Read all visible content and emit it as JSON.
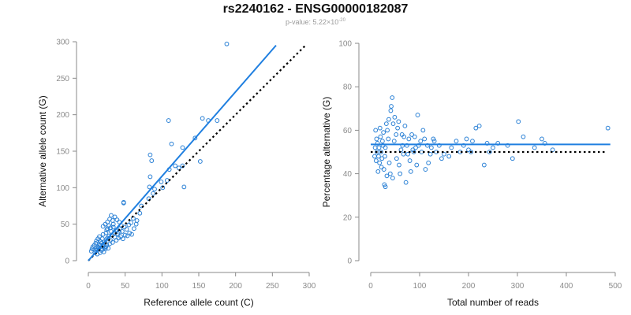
{
  "title": "rs2240162 - ENSG00000182087",
  "subtitle": {
    "prefix": "p-value: 5.22×10",
    "exponent": "-20"
  },
  "colors": {
    "points": "#2a80d5",
    "fit": "#1f7fe0",
    "reference": "#000000",
    "axis": "#8a8a8a"
  },
  "chart_data": [
    {
      "type": "scatter",
      "xlabel": "Reference allele count (C)",
      "ylabel": "Alternative allele count (G)",
      "xlim": [
        0,
        300
      ],
      "ylim": [
        0,
        300
      ],
      "xticks": [
        "0",
        "50",
        "100",
        "150",
        "200",
        "250",
        "300"
      ],
      "yticks": [
        "0",
        "50",
        "100",
        "150",
        "200",
        "250",
        "300"
      ],
      "fit_line": {
        "from": [
          0,
          0
        ],
        "to": [
          255,
          295
        ],
        "style": "solid"
      },
      "reference_line": {
        "from": [
          0,
          0
        ],
        "to": [
          295,
          295
        ],
        "style": "dotted"
      },
      "points": [
        [
          188,
          297
        ],
        [
          109,
          192
        ],
        [
          155,
          195
        ],
        [
          163,
          192
        ],
        [
          175,
          192
        ],
        [
          84,
          145
        ],
        [
          86,
          137
        ],
        [
          145,
          168
        ],
        [
          128,
          155
        ],
        [
          113,
          160
        ],
        [
          118,
          130
        ],
        [
          110,
          125
        ],
        [
          128,
          130
        ],
        [
          123,
          127
        ],
        [
          152,
          136
        ],
        [
          84,
          115
        ],
        [
          99,
          108
        ],
        [
          101,
          100
        ],
        [
          83,
          101
        ],
        [
          90,
          98
        ],
        [
          107,
          110
        ],
        [
          130,
          101
        ],
        [
          82,
          85
        ],
        [
          88,
          92
        ],
        [
          72,
          75
        ],
        [
          70,
          65
        ],
        [
          66,
          55
        ],
        [
          65,
          50
        ],
        [
          48,
          80
        ],
        [
          48,
          79
        ],
        [
          31,
          62
        ],
        [
          36,
          60
        ],
        [
          39,
          56
        ],
        [
          42,
          53
        ],
        [
          45,
          48
        ],
        [
          34,
          50
        ],
        [
          30,
          45
        ],
        [
          25,
          42
        ],
        [
          20,
          36
        ],
        [
          15,
          33
        ],
        [
          13,
          30
        ],
        [
          11,
          27
        ],
        [
          10,
          24
        ],
        [
          8,
          21
        ],
        [
          6,
          19
        ],
        [
          5,
          16
        ],
        [
          4,
          13
        ],
        [
          9,
          11
        ],
        [
          12,
          15
        ],
        [
          14,
          18
        ],
        [
          16,
          21
        ],
        [
          18,
          24
        ],
        [
          20,
          20
        ],
        [
          22,
          26
        ],
        [
          24,
          29
        ],
        [
          26,
          31
        ],
        [
          28,
          34
        ],
        [
          30,
          28
        ],
        [
          32,
          35
        ],
        [
          35,
          38
        ],
        [
          37,
          41
        ],
        [
          40,
          37
        ],
        [
          43,
          44
        ],
        [
          46,
          40
        ],
        [
          49,
          46
        ],
        [
          52,
          43
        ],
        [
          55,
          49
        ],
        [
          58,
          52
        ],
        [
          61,
          58
        ],
        [
          22,
          18
        ],
        [
          25,
          22
        ],
        [
          27,
          17
        ],
        [
          29,
          23
        ],
        [
          33,
          25
        ],
        [
          38,
          28
        ],
        [
          41,
          31
        ],
        [
          44,
          33
        ],
        [
          47,
          30
        ],
        [
          50,
          35
        ],
        [
          53,
          34
        ],
        [
          56,
          38
        ],
        [
          59,
          36
        ],
        [
          62,
          44
        ],
        [
          18,
          14
        ],
        [
          21,
          12
        ],
        [
          23,
          16
        ],
        [
          19,
          30
        ],
        [
          17,
          26
        ],
        [
          15,
          22
        ],
        [
          13,
          19
        ],
        [
          11,
          17
        ],
        [
          10,
          14
        ],
        [
          24,
          38
        ],
        [
          26,
          44
        ],
        [
          28,
          48
        ],
        [
          31,
          40
        ],
        [
          34,
          46
        ],
        [
          36,
          32
        ],
        [
          39,
          42
        ],
        [
          42,
          39
        ],
        [
          20,
          47
        ],
        [
          23,
          50
        ],
        [
          26,
          53
        ],
        [
          29,
          57
        ],
        [
          33,
          55
        ],
        [
          12,
          9
        ],
        [
          16,
          11
        ],
        [
          19,
          16
        ],
        [
          21,
          23
        ],
        [
          24,
          19
        ]
      ]
    },
    {
      "type": "scatter",
      "xlabel": "Total number of reads",
      "ylabel": "Percentage alternative (G)",
      "xlim": [
        0,
        500
      ],
      "ylim": [
        0,
        100
      ],
      "xticks": [
        "0",
        "100",
        "200",
        "300",
        "400",
        "500"
      ],
      "yticks": [
        "0",
        "20",
        "40",
        "60",
        "80",
        "100"
      ],
      "fit_line": {
        "y": 53.5,
        "from_x": 0,
        "to_x": 490,
        "style": "solid"
      },
      "reference_line": {
        "y": 50,
        "from_x": 0,
        "to_x": 480,
        "style": "dotted"
      },
      "points": [
        [
          485,
          61
        ],
        [
          372,
          51
        ],
        [
          356,
          54
        ],
        [
          350,
          56
        ],
        [
          335,
          52
        ],
        [
          312,
          57
        ],
        [
          302,
          64
        ],
        [
          290,
          47
        ],
        [
          280,
          53
        ],
        [
          260,
          54
        ],
        [
          250,
          52
        ],
        [
          243,
          50
        ],
        [
          238,
          54
        ],
        [
          232,
          44
        ],
        [
          222,
          62
        ],
        [
          215,
          61
        ],
        [
          208,
          55
        ],
        [
          205,
          50
        ],
        [
          200,
          51
        ],
        [
          196,
          56
        ],
        [
          190,
          53
        ],
        [
          183,
          50
        ],
        [
          175,
          55
        ],
        [
          165,
          52
        ],
        [
          160,
          48
        ],
        [
          150,
          49
        ],
        [
          145,
          47
        ],
        [
          130,
          55
        ],
        [
          124,
          52
        ],
        [
          118,
          45
        ],
        [
          112,
          42
        ],
        [
          107,
          60
        ],
        [
          102,
          55
        ],
        [
          96,
          67
        ],
        [
          92,
          52
        ],
        [
          88,
          50
        ],
        [
          84,
          58
        ],
        [
          80,
          46
        ],
        [
          76,
          49
        ],
        [
          72,
          36
        ],
        [
          68,
          57
        ],
        [
          65,
          53
        ],
        [
          62,
          51
        ],
        [
          58,
          44
        ],
        [
          55,
          61
        ],
        [
          52,
          58
        ],
        [
          49,
          66
        ],
        [
          46,
          63
        ],
        [
          44,
          75
        ],
        [
          42,
          71
        ],
        [
          40,
          40
        ],
        [
          38,
          45
        ],
        [
          36,
          56
        ],
        [
          34,
          60
        ],
        [
          32,
          63
        ],
        [
          30,
          52
        ],
        [
          29,
          48
        ],
        [
          28,
          35
        ],
        [
          27,
          42
        ],
        [
          26,
          59
        ],
        [
          25,
          53
        ],
        [
          24,
          55
        ],
        [
          23,
          47
        ],
        [
          22,
          43
        ],
        [
          21,
          50
        ],
        [
          20,
          57
        ],
        [
          19,
          61
        ],
        [
          18,
          45
        ],
        [
          17,
          52
        ],
        [
          16,
          48
        ],
        [
          15,
          41
        ],
        [
          14,
          54
        ],
        [
          13,
          50
        ],
        [
          12,
          56
        ],
        [
          11,
          46
        ],
        [
          10,
          60
        ],
        [
          9,
          52
        ],
        [
          8,
          48
        ],
        [
          30,
          34
        ],
        [
          33,
          39
        ],
        [
          37,
          65
        ],
        [
          41,
          69
        ],
        [
          45,
          38
        ],
        [
          48,
          55
        ],
        [
          53,
          47
        ],
        [
          57,
          64
        ],
        [
          60,
          40
        ],
        [
          64,
          58
        ],
        [
          67,
          49
        ],
        [
          70,
          62
        ],
        [
          74,
          53
        ],
        [
          78,
          56
        ],
        [
          82,
          41
        ],
        [
          86,
          51
        ],
        [
          90,
          57
        ],
        [
          94,
          44
        ],
        [
          98,
          53
        ],
        [
          104,
          50
        ],
        [
          110,
          56
        ],
        [
          116,
          53
        ],
        [
          122,
          49
        ],
        [
          128,
          56
        ],
        [
          134,
          50
        ],
        [
          140,
          53
        ]
      ]
    }
  ]
}
